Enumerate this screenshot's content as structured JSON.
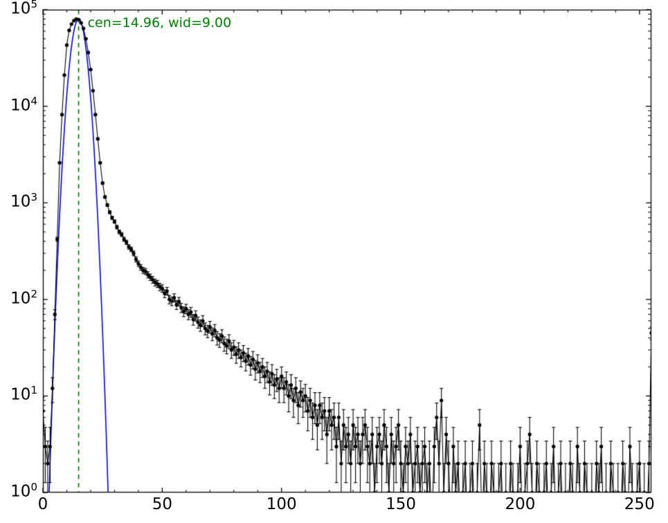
{
  "figure": {
    "background": "#ffffff"
  },
  "chart_data": {
    "type": "line",
    "title": "",
    "xlabel": "",
    "ylabel": "",
    "xlim": [
      0,
      255
    ],
    "ylim_log10": [
      0,
      5
    ],
    "xticks": [
      0,
      50,
      100,
      150,
      200,
      250
    ],
    "x_minor_step": 10,
    "ytick_base": "10",
    "ytick_exponents": [
      0,
      1,
      2,
      3,
      4,
      5
    ],
    "grid": false,
    "series_color": "#000000",
    "errorbars": "sqrt",
    "marker": "point",
    "fit": {
      "label": "cen=14.96, wid=9.00",
      "center": 14.96,
      "width": 9.0,
      "amplitude": 80000,
      "curve_color": "#0000ff",
      "line_color": "#008000",
      "text_color": "#008000",
      "line_style": "dashed"
    },
    "x_start": 0,
    "x_step": 1,
    "counts": [
      7,
      3,
      2,
      3,
      12,
      70,
      420,
      2600,
      8200,
      21000,
      43000,
      61000,
      71000,
      77000,
      80000,
      79000,
      73000,
      64000,
      50000,
      36000,
      24000,
      14500,
      8200,
      4600,
      2600,
      1600,
      1150,
      950,
      800,
      700,
      640,
      560,
      500,
      470,
      420,
      390,
      350,
      330,
      300,
      260,
      235,
      215,
      200,
      195,
      180,
      170,
      160,
      150,
      145,
      135,
      130,
      115,
      122,
      100,
      96,
      104,
      88,
      95,
      82,
      75,
      80,
      70,
      74,
      62,
      68,
      58,
      54,
      60,
      50,
      47,
      52,
      44,
      48,
      40,
      38,
      42,
      35,
      33,
      37,
      30,
      32,
      27,
      30,
      25,
      28,
      23,
      26,
      21,
      24,
      19,
      22,
      18,
      20,
      16,
      18,
      14,
      17,
      13,
      15,
      12,
      16,
      12,
      14,
      10,
      13,
      9,
      12,
      8,
      11,
      9,
      10,
      7,
      9,
      6,
      8,
      5,
      8,
      6,
      7,
      4,
      7,
      5,
      6,
      3,
      6,
      2,
      5,
      3,
      4,
      2,
      5,
      3,
      4,
      2,
      4,
      5,
      3,
      2,
      4,
      1,
      3,
      4,
      2,
      5,
      3,
      1,
      4,
      2,
      3,
      5,
      2,
      1,
      3,
      2,
      4,
      1,
      2,
      3,
      1,
      2,
      3,
      1,
      2,
      0,
      3,
      6,
      2,
      9,
      1,
      4,
      2,
      0,
      3,
      1,
      2,
      0,
      1,
      2,
      0,
      1,
      2,
      0,
      1,
      5,
      0,
      2,
      1,
      0,
      2,
      1,
      0,
      1,
      2,
      0,
      1,
      0,
      2,
      1,
      0,
      1,
      3,
      0,
      1,
      2,
      4,
      1,
      0,
      2,
      1,
      0,
      1,
      2,
      0,
      1,
      3,
      0,
      1,
      2,
      0,
      1,
      0,
      2,
      1,
      0,
      3,
      1,
      0,
      2,
      1,
      0,
      1,
      0,
      2,
      1,
      3,
      0,
      1,
      0,
      2,
      1,
      0,
      1,
      0,
      2,
      1,
      0,
      3,
      1,
      0,
      1,
      2,
      0,
      1,
      0,
      2,
      45
    ]
  }
}
